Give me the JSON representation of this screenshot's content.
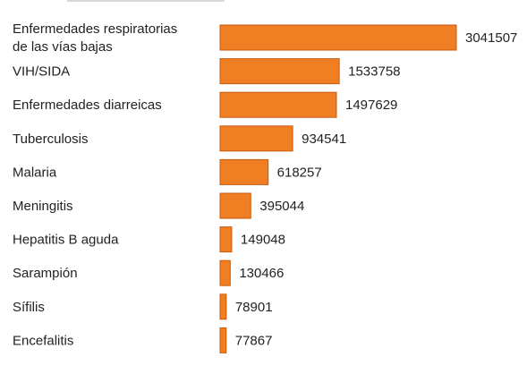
{
  "chart_data": {
    "type": "bar",
    "orientation": "horizontal",
    "categories": [
      "Enfermedades respiratorias de las vías bajas",
      "VIH/SIDA",
      "Enfermedades diarreicas",
      "Tuberculosis",
      "Malaria",
      "Meningitis",
      "Hepatitis B aguda",
      "Sarampión",
      "Sífilis",
      "Encefalitis"
    ],
    "values": [
      3041507,
      1533758,
      1497629,
      934541,
      618257,
      395044,
      149048,
      130466,
      78901,
      77867
    ],
    "title": "",
    "xlabel": "",
    "ylabel": "",
    "data_labels": true,
    "grid": false,
    "legend": "none",
    "bar_color": "#f07f23",
    "bar_edge_color": "#c85a10"
  }
}
